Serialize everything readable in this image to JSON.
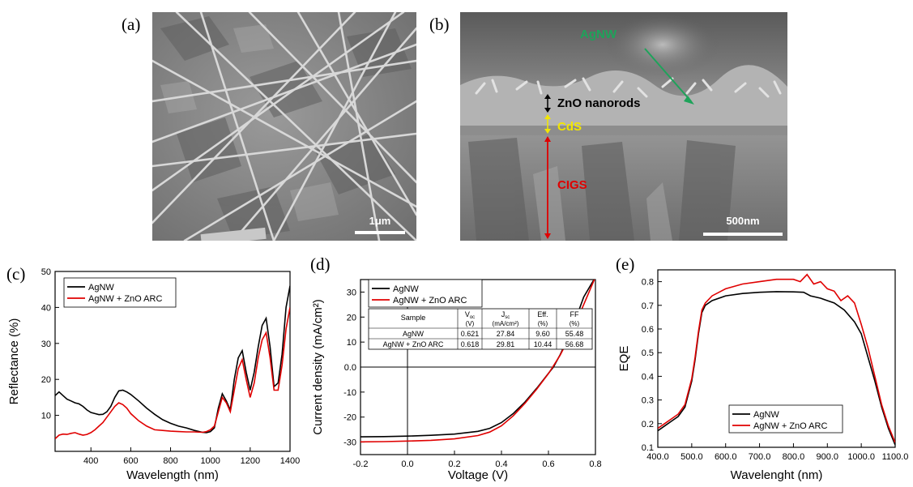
{
  "panels": {
    "a": {
      "label": "(a)",
      "scale_bar": "1μm"
    },
    "b": {
      "label": "(b)",
      "scale_bar": "500nm",
      "annotations": {
        "agnw": "AgNW",
        "zno": "ZnO nanorods",
        "cds": "CdS",
        "cigs": "CIGS"
      }
    },
    "c": {
      "label": "(c)"
    },
    "d": {
      "label": "(d)"
    },
    "e": {
      "label": "(e)"
    }
  },
  "colors": {
    "agnw": "#000000",
    "zno_arc": "#e00000",
    "annot_agnw": "#1ea35a",
    "annot_cds": "#f2e600",
    "annot_cigs": "#e00000"
  },
  "chart_data": [
    {
      "id": "c",
      "type": "line",
      "xlabel": "Wavelength (nm)",
      "ylabel": "Reflectance (%)",
      "xlim": [
        220,
        1400
      ],
      "ylim": [
        0,
        50
      ],
      "xticks": [
        400,
        600,
        800,
        1000,
        1200,
        1400
      ],
      "yticks": [
        10,
        20,
        30,
        40,
        50
      ],
      "legend_position": "top-left",
      "series": [
        {
          "name": "AgNW",
          "x": [
            220,
            240,
            260,
            280,
            300,
            320,
            340,
            360,
            380,
            400,
            420,
            440,
            460,
            480,
            500,
            520,
            540,
            560,
            580,
            600,
            640,
            680,
            720,
            760,
            800,
            840,
            880,
            920,
            960,
            980,
            1000,
            1020,
            1040,
            1060,
            1080,
            1100,
            1120,
            1140,
            1160,
            1180,
            1200,
            1220,
            1240,
            1260,
            1280,
            1300,
            1320,
            1340,
            1360,
            1380,
            1400
          ],
          "y": [
            15.5,
            16.5,
            15.5,
            14.5,
            14,
            13.5,
            13.2,
            12.5,
            11.5,
            10.8,
            10.5,
            10.2,
            10.3,
            11,
            12.5,
            15,
            16.8,
            17,
            16.5,
            15.8,
            14,
            12,
            10.3,
            8.8,
            7.8,
            7,
            6.5,
            5.8,
            5.3,
            5.2,
            5.5,
            6.5,
            12,
            16,
            14,
            11.5,
            20,
            26,
            28,
            22,
            17,
            22,
            29,
            35,
            37,
            29,
            18,
            19,
            27,
            40,
            46
          ]
        },
        {
          "name": "AgNW + ZnO ARC",
          "x": [
            220,
            240,
            260,
            280,
            300,
            320,
            340,
            360,
            380,
            400,
            420,
            440,
            460,
            480,
            500,
            520,
            540,
            560,
            580,
            600,
            640,
            680,
            720,
            760,
            800,
            840,
            880,
            920,
            960,
            980,
            1000,
            1020,
            1040,
            1060,
            1080,
            1100,
            1120,
            1140,
            1160,
            1180,
            1200,
            1220,
            1240,
            1260,
            1280,
            1300,
            1320,
            1340,
            1360,
            1380,
            1400
          ],
          "y": [
            3.5,
            4.5,
            4.8,
            4.7,
            5,
            5.2,
            4.8,
            4.5,
            4.7,
            5.2,
            6,
            7,
            8,
            9.5,
            11,
            12.5,
            13.5,
            13,
            12,
            10.5,
            8.5,
            7,
            6,
            5.8,
            5.6,
            5.5,
            5.4,
            5.4,
            5.3,
            5.5,
            6,
            7,
            11,
            15,
            13.5,
            11,
            17,
            23,
            25.5,
            20,
            15,
            19,
            26,
            31,
            33,
            26,
            17,
            17,
            24,
            34,
            40
          ]
        }
      ]
    },
    {
      "id": "d",
      "type": "line",
      "xlabel": "Voltage (V)",
      "ylabel": "Current density (mA/cm²)",
      "xlim": [
        -0.2,
        0.8
      ],
      "ylim": [
        -35,
        35
      ],
      "xticks": [
        -0.2,
        0.0,
        0.2,
        0.4,
        0.6,
        0.8
      ],
      "yticks": [
        -30,
        -20,
        -10,
        0,
        10,
        20,
        30
      ],
      "legend_position": "top-left",
      "table": {
        "headers": [
          [
            "Sample",
            ""
          ],
          [
            "V",
            "oc",
            "(V)"
          ],
          [
            "J",
            "sc",
            "(mA/cm²)"
          ],
          [
            "Eff.",
            "",
            "(%)"
          ],
          [
            "FF",
            "",
            "(%)"
          ]
        ],
        "rows": [
          [
            "AgNW",
            "0.621",
            "27.84",
            "9.60",
            "55.48"
          ],
          [
            "AgNW + ZnO ARC",
            "0.618",
            "29.81",
            "10.44",
            "56.68"
          ]
        ]
      },
      "series": [
        {
          "name": "AgNW",
          "x": [
            -0.2,
            -0.1,
            0.0,
            0.1,
            0.2,
            0.3,
            0.35,
            0.4,
            0.45,
            0.5,
            0.55,
            0.6,
            0.621,
            0.65,
            0.7,
            0.75,
            0.8
          ],
          "y": [
            -27.9,
            -27.8,
            -27.6,
            -27.3,
            -26.8,
            -25.7,
            -24.5,
            -22.2,
            -18.6,
            -14,
            -8.5,
            -2.5,
            0,
            5,
            15,
            28,
            36
          ]
        },
        {
          "name": "AgNW + ZnO ARC",
          "x": [
            -0.2,
            -0.1,
            0.0,
            0.1,
            0.2,
            0.3,
            0.35,
            0.4,
            0.45,
            0.5,
            0.55,
            0.6,
            0.618,
            0.65,
            0.7,
            0.75,
            0.8
          ],
          "y": [
            -29.9,
            -29.8,
            -29.6,
            -29.3,
            -28.7,
            -27.4,
            -26,
            -23.5,
            -19.5,
            -14.5,
            -8.8,
            -2.6,
            0,
            4.8,
            14,
            25,
            36
          ]
        }
      ]
    },
    {
      "id": "e",
      "type": "line",
      "xlabel": "Wavelenght (nm)",
      "ylabel": "EQE",
      "xlim": [
        400,
        1100
      ],
      "ylim": [
        0.1,
        0.85
      ],
      "xticks": [
        400,
        500,
        600,
        700,
        800,
        900,
        1000,
        1100
      ],
      "yticks": [
        0.1,
        0.2,
        0.3,
        0.4,
        0.5,
        0.6,
        0.7,
        0.8
      ],
      "legend_position": "bottom-left",
      "series": [
        {
          "name": "AgNW",
          "x": [
            400,
            420,
            440,
            460,
            480,
            500,
            510,
            520,
            530,
            540,
            560,
            600,
            650,
            700,
            750,
            800,
            830,
            850,
            880,
            900,
            920,
            950,
            980,
            1000,
            1020,
            1040,
            1060,
            1080,
            1100
          ],
          "y": [
            0.17,
            0.19,
            0.21,
            0.23,
            0.27,
            0.38,
            0.47,
            0.58,
            0.67,
            0.7,
            0.72,
            0.74,
            0.75,
            0.755,
            0.758,
            0.757,
            0.755,
            0.74,
            0.73,
            0.72,
            0.71,
            0.68,
            0.63,
            0.58,
            0.48,
            0.38,
            0.27,
            0.18,
            0.11
          ]
        },
        {
          "name": "AgNW + ZnO ARC",
          "x": [
            400,
            420,
            440,
            460,
            480,
            500,
            510,
            520,
            530,
            540,
            560,
            600,
            650,
            700,
            750,
            800,
            820,
            840,
            860,
            880,
            900,
            920,
            940,
            960,
            980,
            1000,
            1020,
            1040,
            1060,
            1080,
            1100
          ],
          "y": [
            0.18,
            0.2,
            0.22,
            0.24,
            0.28,
            0.39,
            0.48,
            0.59,
            0.68,
            0.71,
            0.74,
            0.77,
            0.79,
            0.8,
            0.81,
            0.81,
            0.8,
            0.83,
            0.79,
            0.8,
            0.77,
            0.76,
            0.72,
            0.74,
            0.71,
            0.62,
            0.52,
            0.4,
            0.28,
            0.19,
            0.12
          ]
        }
      ]
    }
  ]
}
